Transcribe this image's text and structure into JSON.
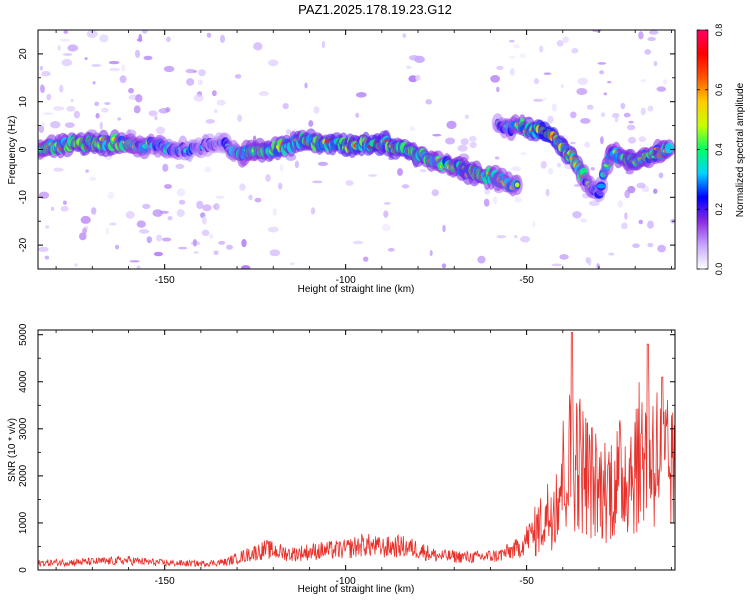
{
  "figure_title": "PAZ1.2025.178.19.23.G12",
  "chart_data": [
    {
      "type": "heatmap",
      "title": "PAZ1.2025.178.19.23.G12",
      "xlabel": "Height of straight line (km)",
      "ylabel": "Frequency (Hz)",
      "xlim": [
        -185,
        -9
      ],
      "ylim": [
        -25,
        25
      ],
      "x_ticks": [
        -150,
        -100,
        -50
      ],
      "y_ticks": [
        -20,
        -10,
        0,
        10,
        20
      ],
      "grid": false,
      "colorbar": {
        "label": "Normalized spectral amplitude",
        "range": [
          0.0,
          0.8
        ],
        "ticks": [
          0.0,
          0.2,
          0.4,
          0.6,
          0.8
        ],
        "colormap": [
          "#ffffff",
          "#c7a6ff",
          "#8a2be2",
          "#0000ff",
          "#00d4ff",
          "#00ff66",
          "#c8ff00",
          "#ffcc00",
          "#ff5500",
          "#ff0000",
          "#ff0066"
        ]
      },
      "ridge": [
        {
          "x": -185,
          "y": 0.5,
          "a": 0.45
        },
        {
          "x": -175,
          "y": 1.0,
          "a": 0.5
        },
        {
          "x": -165,
          "y": 1.5,
          "a": 0.5
        },
        {
          "x": -155,
          "y": 1.0,
          "a": 0.4
        },
        {
          "x": -145,
          "y": 0.0,
          "a": 0.3
        },
        {
          "x": -135,
          "y": 1.5,
          "a": 0.25
        },
        {
          "x": -128,
          "y": -1.0,
          "a": 0.45
        },
        {
          "x": -120,
          "y": 0.0,
          "a": 0.5
        },
        {
          "x": -112,
          "y": 2.0,
          "a": 0.5
        },
        {
          "x": -100,
          "y": 1.0,
          "a": 0.55
        },
        {
          "x": -90,
          "y": 1.5,
          "a": 0.55
        },
        {
          "x": -80,
          "y": -1.0,
          "a": 0.5
        },
        {
          "x": -72,
          "y": -3.0,
          "a": 0.45
        },
        {
          "x": -65,
          "y": -5.0,
          "a": 0.5
        },
        {
          "x": -58,
          "y": -6.0,
          "a": 0.45
        },
        {
          "x": -52,
          "y": -8.0,
          "a": 0.4
        }
      ],
      "ridge2": [
        {
          "x": -58,
          "y": 5.0,
          "a": 0.3
        },
        {
          "x": -50,
          "y": 4.5,
          "a": 0.5
        },
        {
          "x": -45,
          "y": 3.5,
          "a": 0.65
        },
        {
          "x": -40,
          "y": 0.5,
          "a": 0.55
        },
        {
          "x": -36,
          "y": -3.0,
          "a": 0.5
        },
        {
          "x": -33,
          "y": -7.0,
          "a": 0.4
        },
        {
          "x": -30,
          "y": -9.0,
          "a": 0.3
        },
        {
          "x": -27,
          "y": -1.0,
          "a": 0.45
        },
        {
          "x": -20,
          "y": -2.0,
          "a": 0.5
        },
        {
          "x": -15,
          "y": -1.0,
          "a": 0.45
        },
        {
          "x": -10,
          "y": 0.5,
          "a": 0.5
        }
      ]
    },
    {
      "type": "line",
      "xlabel": "Height of straight line (km)",
      "ylabel": "SNR (10 * v/v)",
      "xlim": [
        -185,
        -9
      ],
      "ylim": [
        0,
        5100
      ],
      "x_ticks": [
        -150,
        -100,
        -50
      ],
      "y_ticks": [
        0,
        1000,
        2000,
        3000,
        4000,
        5000
      ],
      "grid": false,
      "color": "#e8302a",
      "envelope": [
        {
          "x": -185,
          "y": 220
        },
        {
          "x": -170,
          "y": 260
        },
        {
          "x": -160,
          "y": 300
        },
        {
          "x": -150,
          "y": 220
        },
        {
          "x": -140,
          "y": 200
        },
        {
          "x": -133,
          "y": 250
        },
        {
          "x": -128,
          "y": 450
        },
        {
          "x": -122,
          "y": 650
        },
        {
          "x": -115,
          "y": 500
        },
        {
          "x": -108,
          "y": 600
        },
        {
          "x": -100,
          "y": 650
        },
        {
          "x": -95,
          "y": 800
        },
        {
          "x": -90,
          "y": 700
        },
        {
          "x": -85,
          "y": 750
        },
        {
          "x": -80,
          "y": 650
        },
        {
          "x": -75,
          "y": 450
        },
        {
          "x": -65,
          "y": 400
        },
        {
          "x": -58,
          "y": 450
        },
        {
          "x": -52,
          "y": 700
        },
        {
          "x": -47,
          "y": 1400
        },
        {
          "x": -43,
          "y": 2100
        },
        {
          "x": -40,
          "y": 3200
        },
        {
          "x": -37,
          "y": 4000
        },
        {
          "x": -34,
          "y": 3400
        },
        {
          "x": -30,
          "y": 2700
        },
        {
          "x": -25,
          "y": 3000
        },
        {
          "x": -20,
          "y": 3600
        },
        {
          "x": -17,
          "y": 4200
        },
        {
          "x": -13,
          "y": 3800
        },
        {
          "x": -10,
          "y": 3300
        }
      ],
      "peaks": [
        {
          "x": -37.5,
          "y": 5050
        },
        {
          "x": -16.5,
          "y": 4800
        },
        {
          "x": -12.5,
          "y": 4100
        }
      ]
    }
  ]
}
